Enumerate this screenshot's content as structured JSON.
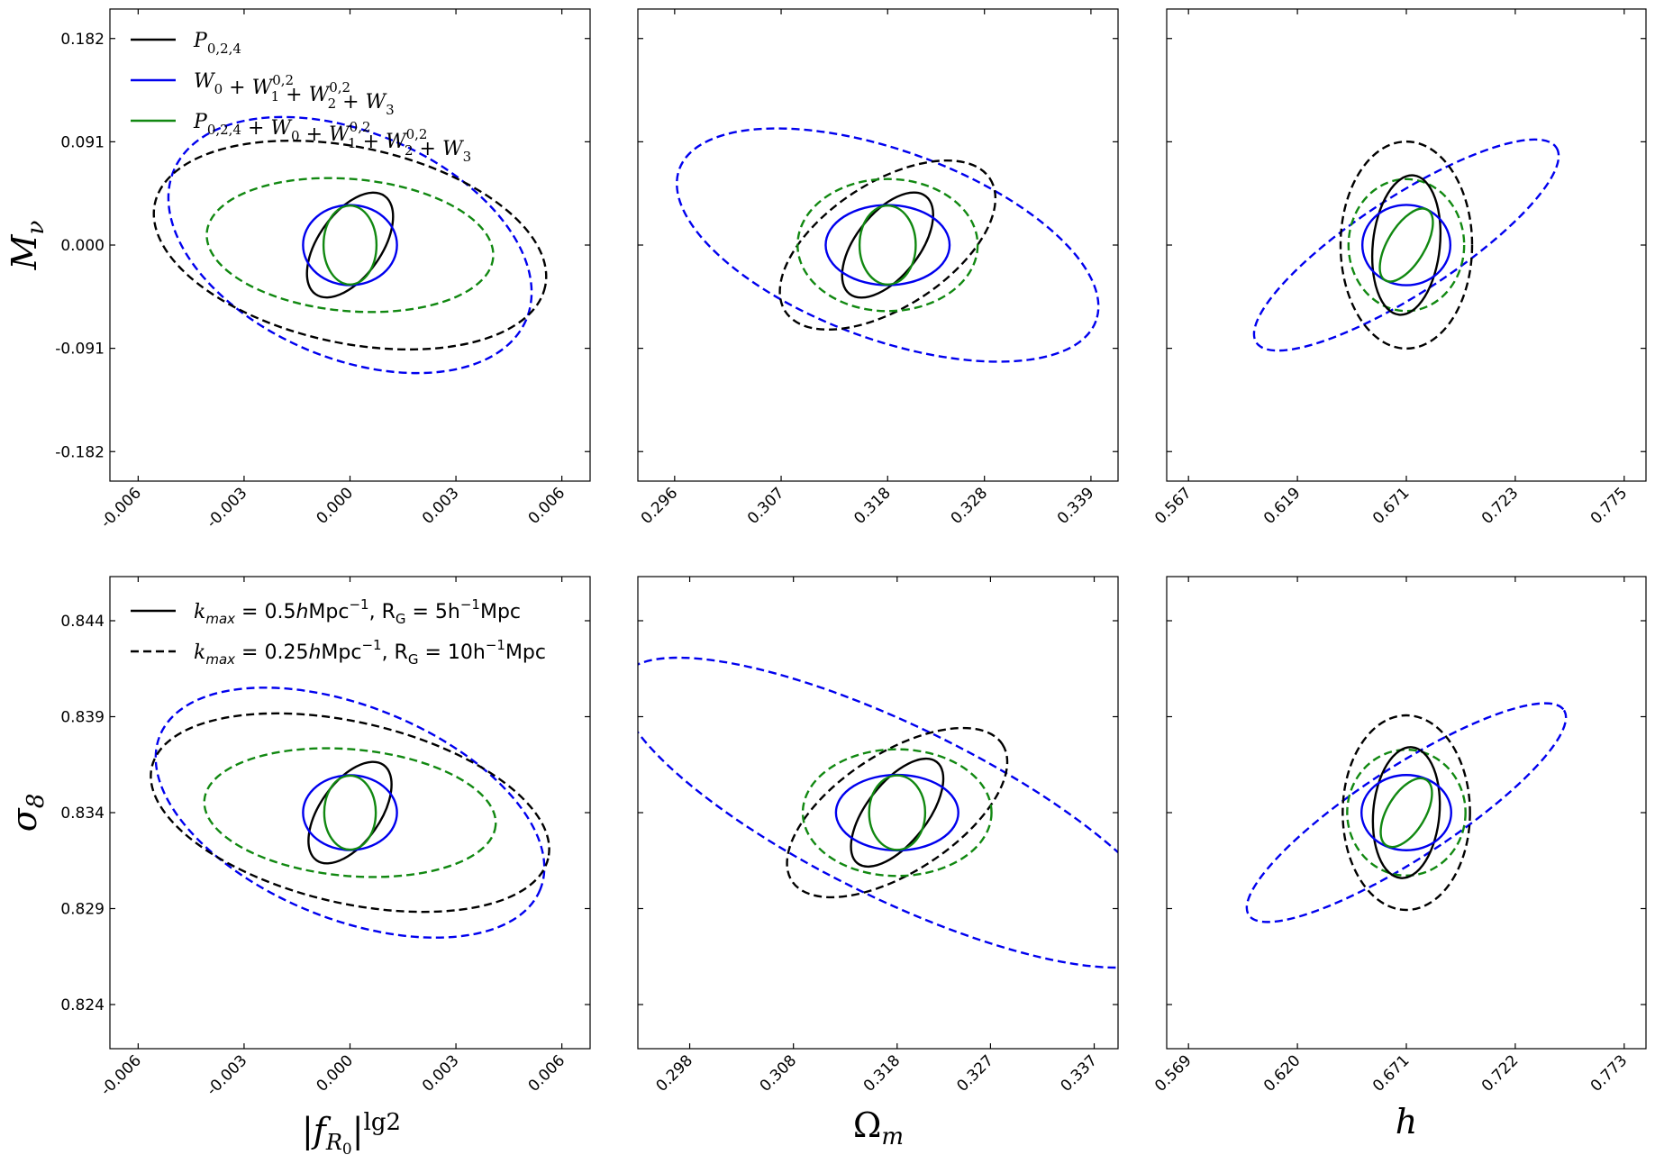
{
  "chart_data": {
    "type": "contour",
    "colors": {
      "P": "#000000",
      "W": "#0000ee",
      "PW": "#118811"
    },
    "legend_top": [
      {
        "key": "P",
        "style": "solid",
        "color": "#000000",
        "label": "P_{0,2,4}"
      },
      {
        "key": "W",
        "style": "solid",
        "color": "#0000ee",
        "label": "W_0 + W_1^{0,2} + W_2^{0,2} + W_3"
      },
      {
        "key": "PW",
        "style": "solid",
        "color": "#118811",
        "label": "P_{0,2,4} + W_0 + W_1^{0,2} + W_2^{0,2} + W_3"
      }
    ],
    "legend_bottom": [
      {
        "style": "solid",
        "color": "#000000",
        "label": "k_max = 0.5hMpc^-1, R_G = 5h^-1Mpc"
      },
      {
        "style": "dashed",
        "color": "#000000",
        "label": "k_max = 0.25hMpc^-1, R_G = 10h^-1Mpc"
      }
    ],
    "xlabels": [
      "|f_R0|^lg2",
      "Ω_m",
      "h"
    ],
    "ylabels": [
      "M_ν",
      "σ_8"
    ],
    "panels": [
      {
        "row": 0,
        "col": 0,
        "xlim": [
          -0.0068,
          0.0068
        ],
        "ylim": [
          -0.208,
          0.208
        ],
        "xticks": [
          -0.006,
          -0.003,
          0.0,
          0.003,
          0.006
        ],
        "xtick_labels": [
          "-0.006",
          "-0.003",
          "0.000",
          "0.003",
          "0.006"
        ],
        "yticks": [
          -0.182,
          -0.091,
          0.0,
          0.091,
          0.182
        ],
        "ytick_labels": [
          "-0.182",
          "-0.091",
          "0.000",
          "0.091",
          "0.182"
        ],
        "ellipses": [
          {
            "key": "W",
            "style": "dashed",
            "cx": 0.0,
            "cy": 0.0,
            "a": 0.00542,
            "b": 0.0995,
            "angle": -23
          },
          {
            "key": "P",
            "style": "dashed",
            "cx": 0.0,
            "cy": 0.0,
            "a": 0.00565,
            "b": 0.0863,
            "angle": -12
          },
          {
            "key": "PW",
            "style": "dashed",
            "cx": 0.0,
            "cy": 0.0,
            "a": 0.00407,
            "b": 0.0582,
            "angle": -5
          },
          {
            "key": "P",
            "style": "solid",
            "cx": 0.0,
            "cy": 0.0,
            "a": 0.0017,
            "b": 0.0278,
            "angle": 55
          },
          {
            "key": "W",
            "style": "solid",
            "cx": 0.0,
            "cy": 0.0,
            "a": 0.00133,
            "b": 0.0353,
            "angle": 0
          },
          {
            "key": "PW",
            "style": "solid",
            "cx": 0.0,
            "cy": 0.0,
            "a": 0.00075,
            "b": 0.0348,
            "angle": 0
          }
        ]
      },
      {
        "row": 0,
        "col": 1,
        "xlim": [
          0.2922,
          0.3418
        ],
        "ylim": [
          -0.208,
          0.208
        ],
        "xticks": [
          0.296,
          0.307,
          0.318,
          0.328,
          0.339
        ],
        "xtick_labels": [
          "0.296",
          "0.307",
          "0.318",
          "0.328",
          "0.339"
        ],
        "yticks": [
          -0.182,
          -0.091,
          0.0,
          0.091,
          0.182
        ],
        "ytick_labels": [],
        "ellipses": [
          {
            "key": "W",
            "style": "dashed",
            "cx": 0.318,
            "cy": 0.0,
            "a": 0.0229,
            "b": 0.0831,
            "angle": -20
          },
          {
            "key": "P",
            "style": "dashed",
            "cx": 0.318,
            "cy": 0.0,
            "a": 0.0126,
            "b": 0.0549,
            "angle": 33
          },
          {
            "key": "PW",
            "style": "dashed",
            "cx": 0.318,
            "cy": 0.0,
            "a": 0.0093,
            "b": 0.0582,
            "angle": 0
          },
          {
            "key": "P",
            "style": "solid",
            "cx": 0.318,
            "cy": 0.0,
            "a": 0.0064,
            "b": 0.0278,
            "angle": 52
          },
          {
            "key": "W",
            "style": "solid",
            "cx": 0.318,
            "cy": 0.0,
            "a": 0.0064,
            "b": 0.0353,
            "angle": 0
          },
          {
            "key": "PW",
            "style": "solid",
            "cx": 0.318,
            "cy": 0.0,
            "a": 0.0029,
            "b": 0.0348,
            "angle": 0
          }
        ]
      },
      {
        "row": 0,
        "col": 2,
        "xlim": [
          0.5566,
          0.7854
        ],
        "ylim": [
          -0.208,
          0.208
        ],
        "xticks": [
          0.567,
          0.619,
          0.671,
          0.723,
          0.775
        ],
        "xtick_labels": [
          "0.567",
          "0.619",
          "0.671",
          "0.723",
          "0.775"
        ],
        "yticks": [
          -0.182,
          -0.091,
          0.0,
          0.091,
          0.182
        ],
        "ytick_labels": [],
        "ellipses": [
          {
            "key": "W",
            "style": "dashed",
            "cx": 0.671,
            "cy": 0.0,
            "a": 0.0854,
            "b": 0.0426,
            "angle": 33
          },
          {
            "key": "P",
            "style": "dashed",
            "cx": 0.671,
            "cy": 0.0,
            "a": 0.0314,
            "b": 0.0912,
            "angle": 0
          },
          {
            "key": "PW",
            "style": "dashed",
            "cx": 0.671,
            "cy": 0.0,
            "a": 0.0276,
            "b": 0.0581,
            "angle": 0
          },
          {
            "key": "P",
            "style": "solid",
            "cx": 0.671,
            "cy": 0.0,
            "a": 0.016,
            "b": 0.0617,
            "angle": -6
          },
          {
            "key": "W",
            "style": "solid",
            "cx": 0.671,
            "cy": 0.0,
            "a": 0.021,
            "b": 0.0354,
            "angle": 0
          },
          {
            "key": "PW",
            "style": "solid",
            "cx": 0.671,
            "cy": 0.0,
            "a": 0.0089,
            "b": 0.0362,
            "angle": -31
          }
        ]
      },
      {
        "row": 1,
        "col": 0,
        "xlim": [
          -0.0068,
          0.0068
        ],
        "ylim": [
          0.8217,
          0.8463
        ],
        "xticks": [
          -0.006,
          -0.003,
          0.0,
          0.003,
          0.006
        ],
        "xtick_labels": [
          "-0.006",
          "-0.003",
          "0.000",
          "0.003",
          "0.006"
        ],
        "yticks": [
          0.824,
          0.829,
          0.834,
          0.839,
          0.844
        ],
        "ytick_labels": [
          "0.824",
          "0.829",
          "0.834",
          "0.839",
          "0.844"
        ],
        "ellipses": [
          {
            "key": "W",
            "style": "dashed",
            "cx": 0.0,
            "cy": 0.834,
            "a": 0.00581,
            "b": 0.00554,
            "angle": -22
          },
          {
            "key": "P",
            "style": "dashed",
            "cx": 0.0,
            "cy": 0.834,
            "a": 0.00576,
            "b": 0.00471,
            "angle": -13
          },
          {
            "key": "PW",
            "style": "dashed",
            "cx": 0.0,
            "cy": 0.834,
            "a": 0.00414,
            "b": 0.0033,
            "angle": -5
          },
          {
            "key": "P",
            "style": "solid",
            "cx": 0.0,
            "cy": 0.834,
            "a": 0.00165,
            "b": 0.00157,
            "angle": 55
          },
          {
            "key": "W",
            "style": "solid",
            "cx": 0.0,
            "cy": 0.834,
            "a": 0.00133,
            "b": 0.00195,
            "angle": 0
          },
          {
            "key": "PW",
            "style": "solid",
            "cx": 0.0,
            "cy": 0.834,
            "a": 0.00073,
            "b": 0.00193,
            "angle": 0
          }
        ]
      },
      {
        "row": 1,
        "col": 1,
        "xlim": [
          0.293,
          0.3393
        ],
        "ylim": [
          0.8217,
          0.8463
        ],
        "xticks": [
          0.298,
          0.308,
          0.318,
          0.327,
          0.337
        ],
        "xtick_labels": [
          "0.298",
          "0.308",
          "0.318",
          "0.327",
          "0.337"
        ],
        "yticks": [
          0.824,
          0.829,
          0.834,
          0.839,
          0.844
        ],
        "ytick_labels": [],
        "ellipses": [
          {
            "key": "W",
            "style": "dashed",
            "cx": 0.318,
            "cy": 0.834,
            "a": 0.0295,
            "b": 0.0045,
            "angle": -26
          },
          {
            "key": "P",
            "style": "dashed",
            "cx": 0.318,
            "cy": 0.834,
            "a": 0.0121,
            "b": 0.0031,
            "angle": 33
          },
          {
            "key": "PW",
            "style": "dashed",
            "cx": 0.318,
            "cy": 0.834,
            "a": 0.0091,
            "b": 0.0033,
            "angle": 0
          },
          {
            "key": "P",
            "style": "solid",
            "cx": 0.318,
            "cy": 0.834,
            "a": 0.0062,
            "b": 0.00157,
            "angle": 52
          },
          {
            "key": "W",
            "style": "solid",
            "cx": 0.318,
            "cy": 0.834,
            "a": 0.0059,
            "b": 0.00197,
            "angle": 0
          },
          {
            "key": "PW",
            "style": "solid",
            "cx": 0.318,
            "cy": 0.834,
            "a": 0.0027,
            "b": 0.00194,
            "angle": 0
          }
        ]
      },
      {
        "row": 1,
        "col": 2,
        "xlim": [
          0.5588,
          0.7832
        ],
        "ylim": [
          0.8217,
          0.8463
        ],
        "xticks": [
          0.569,
          0.62,
          0.671,
          0.722,
          0.773
        ],
        "xtick_labels": [
          "0.569",
          "0.620",
          "0.671",
          "0.722",
          "0.773"
        ],
        "yticks": [
          0.824,
          0.829,
          0.834,
          0.839,
          0.844
        ],
        "ytick_labels": [],
        "ellipses": [
          {
            "key": "W",
            "style": "dashed",
            "cx": 0.671,
            "cy": 0.834,
            "a": 0.088,
            "b": 0.00239,
            "angle": 33
          },
          {
            "key": "P",
            "style": "dashed",
            "cx": 0.671,
            "cy": 0.834,
            "a": 0.0298,
            "b": 0.00507,
            "angle": 0
          },
          {
            "key": "PW",
            "style": "dashed",
            "cx": 0.671,
            "cy": 0.834,
            "a": 0.0277,
            "b": 0.00328,
            "angle": 0
          },
          {
            "key": "P",
            "style": "solid",
            "cx": 0.671,
            "cy": 0.834,
            "a": 0.0155,
            "b": 0.00342,
            "angle": -5
          },
          {
            "key": "W",
            "style": "solid",
            "cx": 0.671,
            "cy": 0.834,
            "a": 0.021,
            "b": 0.00196,
            "angle": 0
          },
          {
            "key": "PW",
            "style": "solid",
            "cx": 0.671,
            "cy": 0.834,
            "a": 0.0089,
            "b": 0.002,
            "angle": -31
          }
        ]
      }
    ]
  }
}
